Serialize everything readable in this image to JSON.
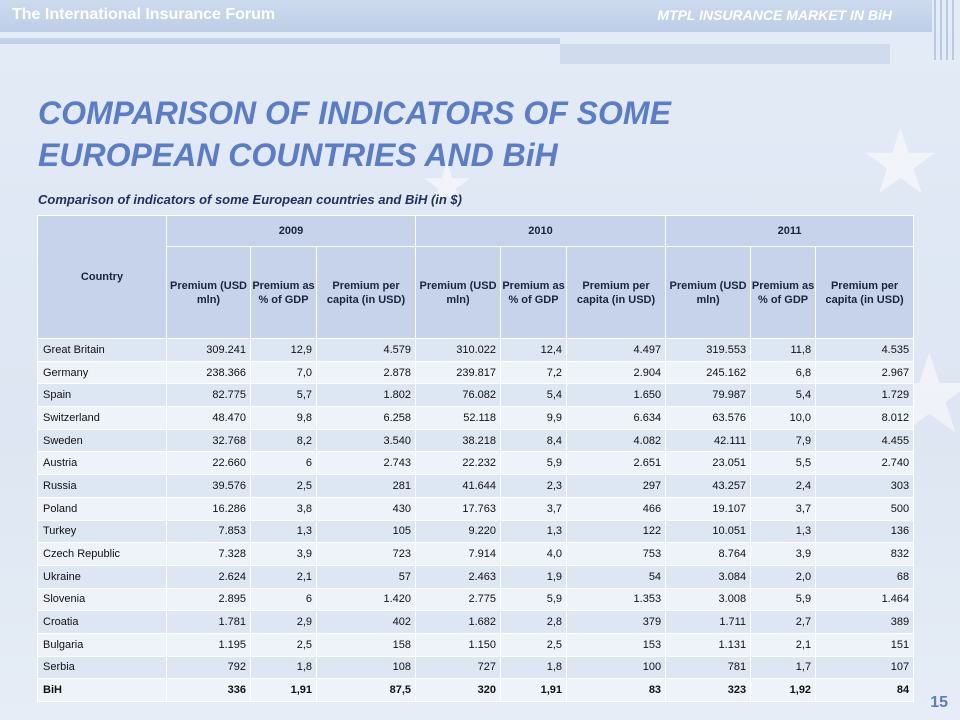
{
  "header": {
    "forum_title": "The International Insurance Forum",
    "market_title": "MTPL INSURANCE MARKET IN BiH"
  },
  "title": {
    "line1": "COMPARISON OF INDICATORS OF SOME",
    "line2": "EUROPEAN COUNTRIES AND BiH"
  },
  "subtitle": "Comparison of indicators of some European countries and BiH (in $)",
  "table": {
    "country_header": "Country",
    "years": [
      "2009",
      "2010",
      "2011"
    ],
    "metrics": [
      "Premium (USD mln)",
      "Premium as % of GDP",
      "Premium per capita (in USD)"
    ],
    "rows": [
      {
        "country": "Great Britain",
        "values": [
          "309.241",
          "12,9",
          "4.579",
          "310.022",
          "12,4",
          "4.497",
          "319.553",
          "11,8",
          "4.535"
        ]
      },
      {
        "country": "Germany",
        "values": [
          "238.366",
          "7,0",
          "2.878",
          "239.817",
          "7,2",
          "2.904",
          "245.162",
          "6,8",
          "2.967"
        ]
      },
      {
        "country": "Spain",
        "values": [
          "82.775",
          "5,7",
          "1.802",
          "76.082",
          "5,4",
          "1.650",
          "79.987",
          "5,4",
          "1.729"
        ]
      },
      {
        "country": "Switzerland",
        "values": [
          "48.470",
          "9,8",
          "6.258",
          "52.118",
          "9,9",
          "6.634",
          "63.576",
          "10,0",
          "8.012"
        ]
      },
      {
        "country": "Sweden",
        "values": [
          "32.768",
          "8,2",
          "3.540",
          "38.218",
          "8,4",
          "4.082",
          "42.111",
          "7,9",
          "4.455"
        ]
      },
      {
        "country": "Austria",
        "values": [
          "22.660",
          "6",
          "2.743",
          "22.232",
          "5,9",
          "2.651",
          "23.051",
          "5,5",
          "2.740"
        ]
      },
      {
        "country": "Russia",
        "values": [
          "39.576",
          "2,5",
          "281",
          "41.644",
          "2,3",
          "297",
          "43.257",
          "2,4",
          "303"
        ]
      },
      {
        "country": "Poland",
        "values": [
          "16.286",
          "3,8",
          "430",
          "17.763",
          "3,7",
          "466",
          "19.107",
          "3,7",
          "500"
        ]
      },
      {
        "country": "Turkey",
        "values": [
          "7.853",
          "1,3",
          "105",
          "9.220",
          "1,3",
          "122",
          "10.051",
          "1,3",
          "136"
        ]
      },
      {
        "country": "Czech Republic",
        "values": [
          "7.328",
          "3,9",
          "723",
          "7.914",
          "4,0",
          "753",
          "8.764",
          "3,9",
          "832"
        ]
      },
      {
        "country": "Ukraine",
        "values": [
          "2.624",
          "2,1",
          "57",
          "2.463",
          "1,9",
          "54",
          "3.084",
          "2,0",
          "68"
        ]
      },
      {
        "country": "Slovenia",
        "values": [
          "2.895",
          "6",
          "1.420",
          "2.775",
          "5,9",
          "1.353",
          "3.008",
          "5,9",
          "1.464"
        ]
      },
      {
        "country": "Croatia",
        "values": [
          "1.781",
          "2,9",
          "402",
          "1.682",
          "2,8",
          "379",
          "1.711",
          "2,7",
          "389"
        ]
      },
      {
        "country": "Bulgaria",
        "values": [
          "1.195",
          "2,5",
          "158",
          "1.150",
          "2,5",
          "153",
          "1.131",
          "2,1",
          "151"
        ]
      },
      {
        "country": "Serbia",
        "values": [
          "792",
          "1,8",
          "108",
          "727",
          "1,8",
          "100",
          "781",
          "1,7",
          "107"
        ]
      },
      {
        "country": "BiH",
        "values": [
          "336",
          "1,91",
          "87,5",
          "320",
          "1,91",
          "83",
          "323",
          "1,92",
          "84"
        ],
        "bold": true
      }
    ]
  },
  "page_number": "15",
  "colors": {
    "title": "#5b7cc6",
    "header_cell": "#c6d3ea",
    "row_odd": "#dde6f3",
    "row_even": "#eef2f9"
  },
  "icons": [
    "star-icon"
  ]
}
